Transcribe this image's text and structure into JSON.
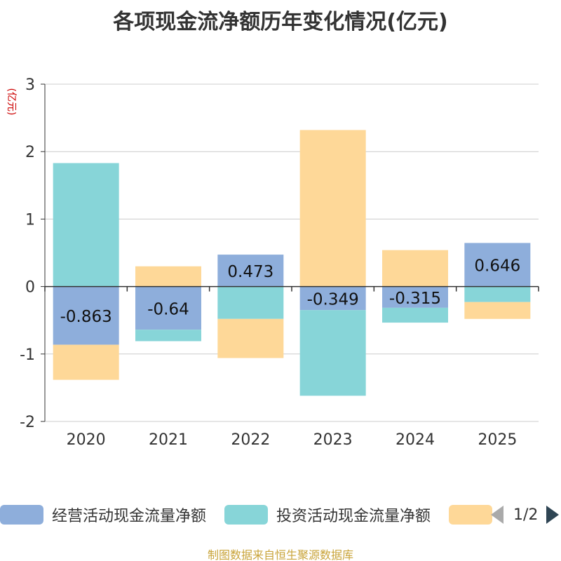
{
  "chart_data": {
    "type": "bar",
    "stacked": true,
    "title": "各项现金流净额历年变化情况(亿元)",
    "ylabel": "(亿元)",
    "ylim": [
      -2,
      3
    ],
    "yticks": [
      -2,
      -1,
      0,
      1,
      2,
      3
    ],
    "grid": true,
    "categories": [
      "2020",
      "2021",
      "2022",
      "2023",
      "2024",
      "2025"
    ],
    "series": [
      {
        "name": "经营活动现金流量净额",
        "color": "#8eaedb",
        "values": [
          -0.863,
          -0.64,
          0.473,
          -0.349,
          -0.315,
          0.646
        ],
        "labels": [
          "-0.863",
          "-0.64",
          "0.473",
          "-0.349",
          "-0.315",
          "0.646"
        ]
      },
      {
        "name": "投资活动现金流量净额",
        "color": "#87d5d8",
        "values": [
          1.83,
          -0.17,
          -0.48,
          -1.27,
          -0.22,
          -0.23
        ]
      },
      {
        "name": "",
        "color": "#fed898",
        "values": [
          -0.52,
          0.3,
          -0.58,
          2.32,
          0.54,
          -0.25
        ]
      }
    ],
    "legend": {
      "position": "bottom",
      "page": "1/2"
    }
  },
  "source": "制图数据来自恒生聚源数据库"
}
